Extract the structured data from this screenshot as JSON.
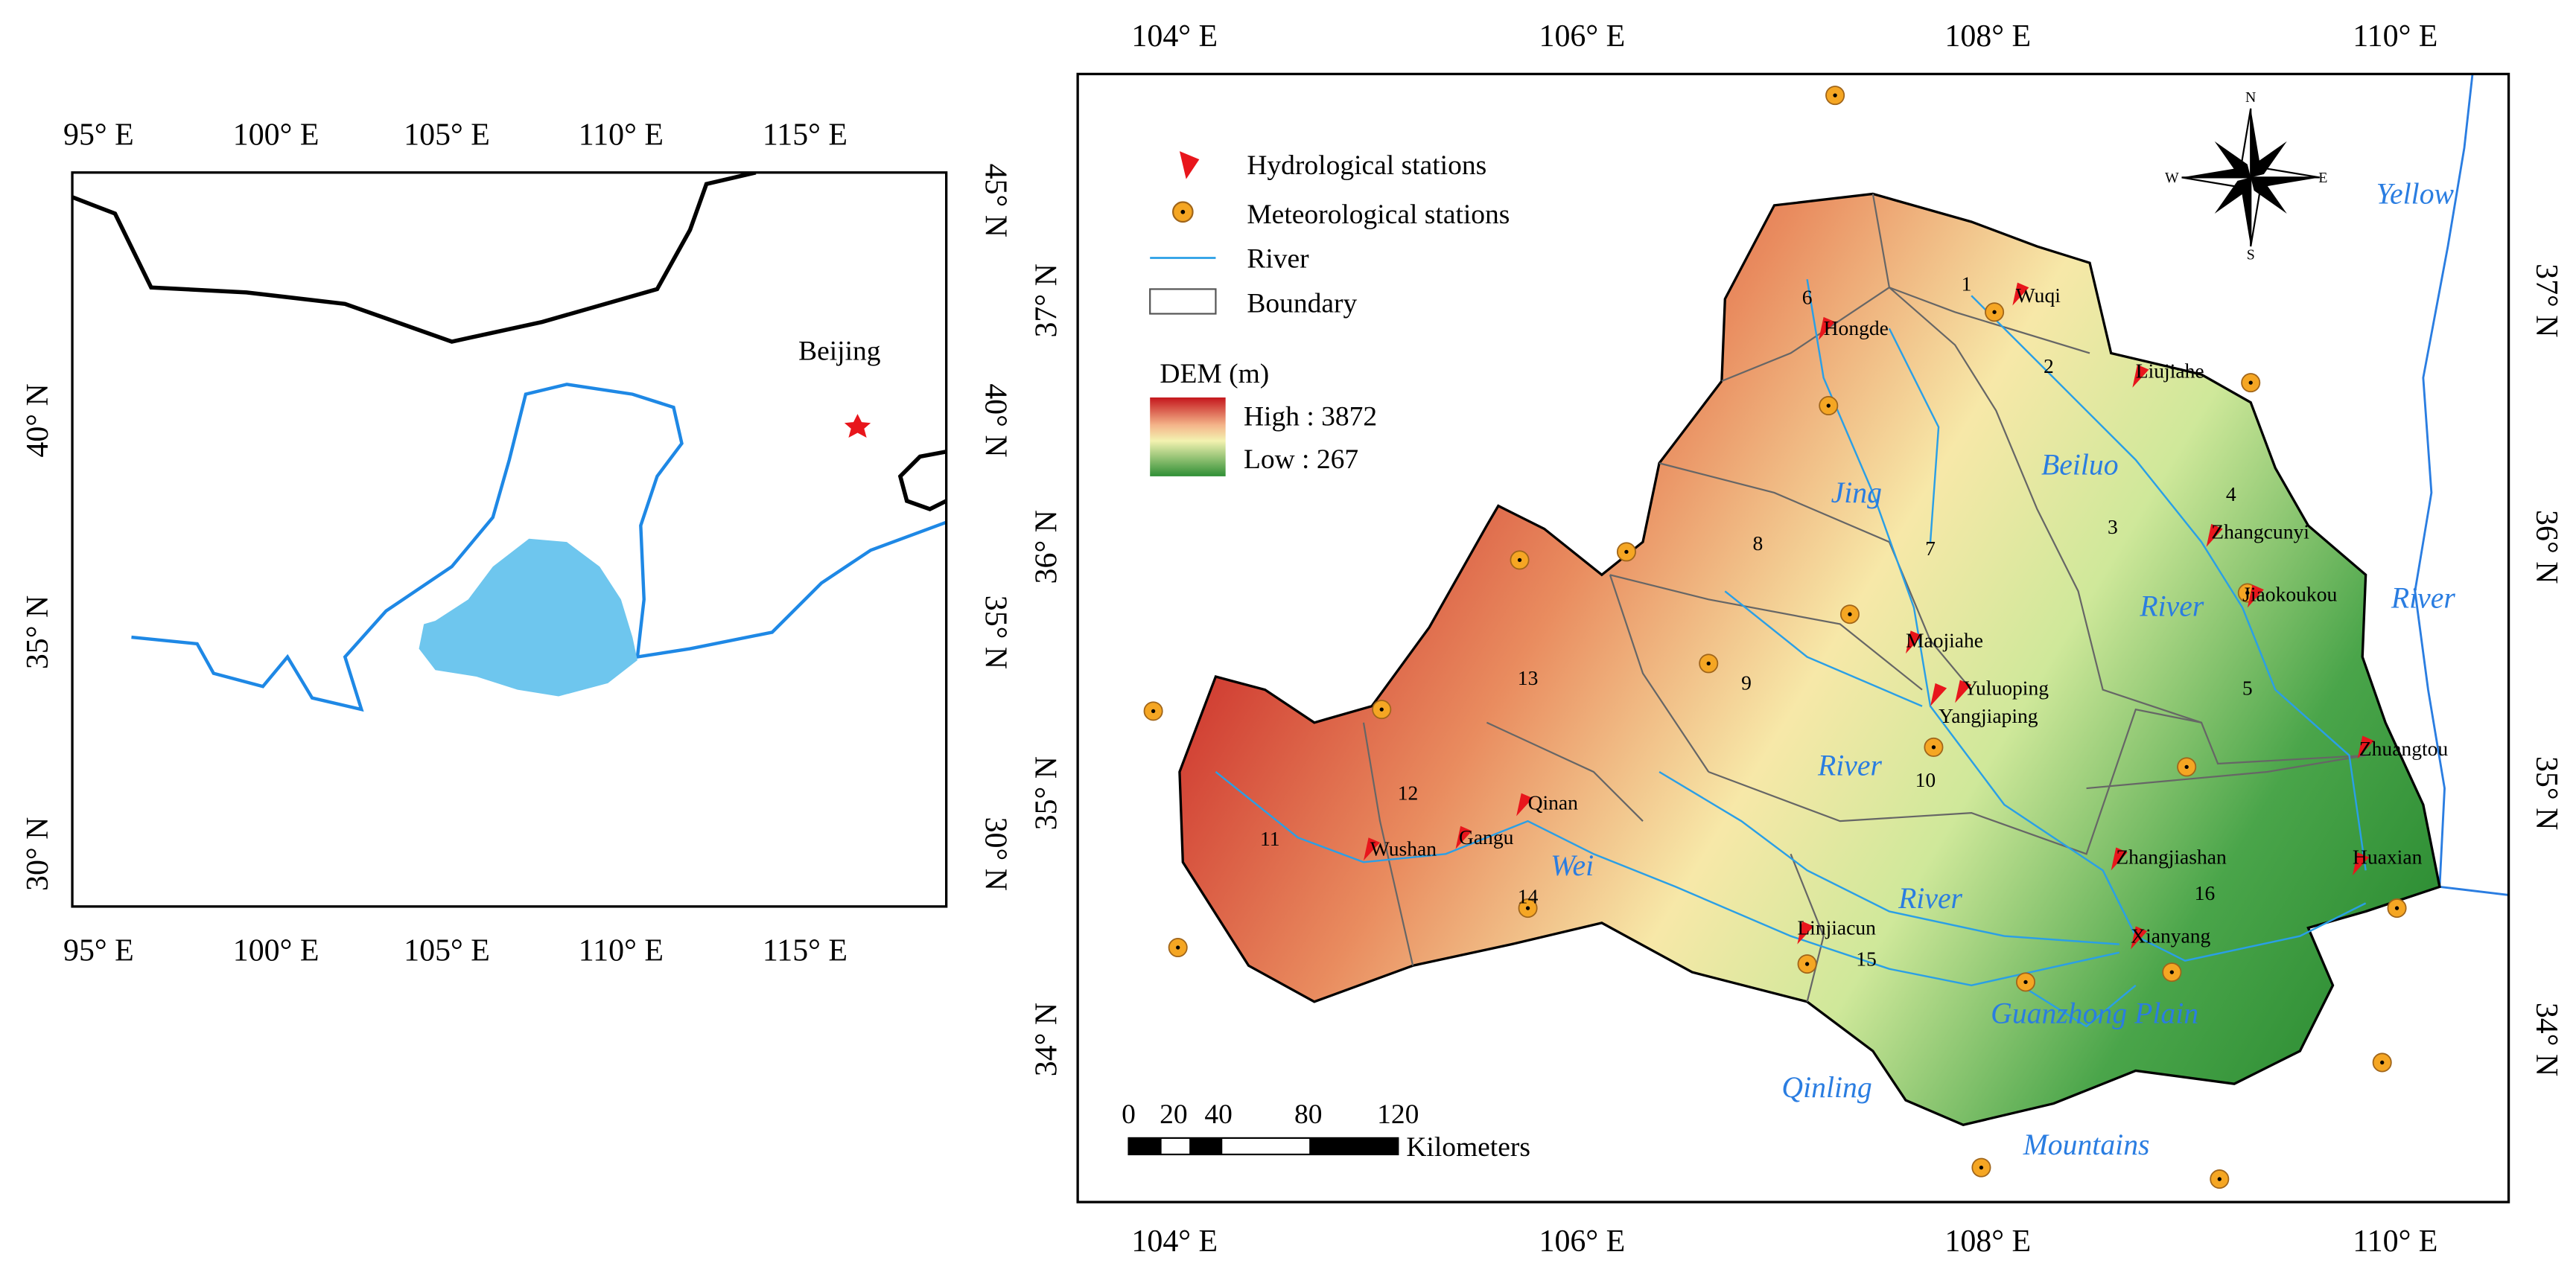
{
  "left_map": {
    "lon_labels": [
      "95° E",
      "100° E",
      "105° E",
      "110° E",
      "115° E"
    ],
    "lat_labels": [
      "45° N",
      "40° N",
      "35° N",
      "30° N"
    ],
    "place": "Beijing"
  },
  "main_map": {
    "lon_labels": [
      "104° E",
      "106° E",
      "108° E",
      "110° E"
    ],
    "lat_labels": [
      "37° N",
      "36° N",
      "35° N",
      "34° N"
    ],
    "legend": [
      "Hydrological stations",
      "Meteorological stations",
      "River",
      "Boundary"
    ],
    "dem": {
      "title": "DEM (m)",
      "high": "High : 3872",
      "low": "Low : 267"
    },
    "subbasins": [
      1,
      2,
      3,
      4,
      5,
      6,
      7,
      8,
      9,
      10,
      11,
      12,
      13,
      14,
      15,
      16
    ],
    "stations": [
      "Wuqi",
      "Hongde",
      "Liujiahe",
      "Zhangcunyi",
      "Jiaokoukou",
      "Maojiahe",
      "Yuluoping",
      "Yangjiaping",
      "Zhuangtou",
      "Zhangjiashan",
      "Huaxian",
      "Xianyang",
      "Linjiacun",
      "Qinan",
      "Gangu",
      "Wushan"
    ],
    "river_labels": [
      "Yellow",
      "River",
      "Beiluo",
      "River",
      "Jing",
      "River",
      "Wei",
      "River",
      "Guanzhong Plain",
      "Qinling",
      "Mountains"
    ],
    "scale": {
      "ticks": [
        0,
        20,
        40,
        80,
        120
      ],
      "unit": "Kilometers"
    },
    "compass": [
      "N",
      "E",
      "S",
      "W"
    ]
  }
}
